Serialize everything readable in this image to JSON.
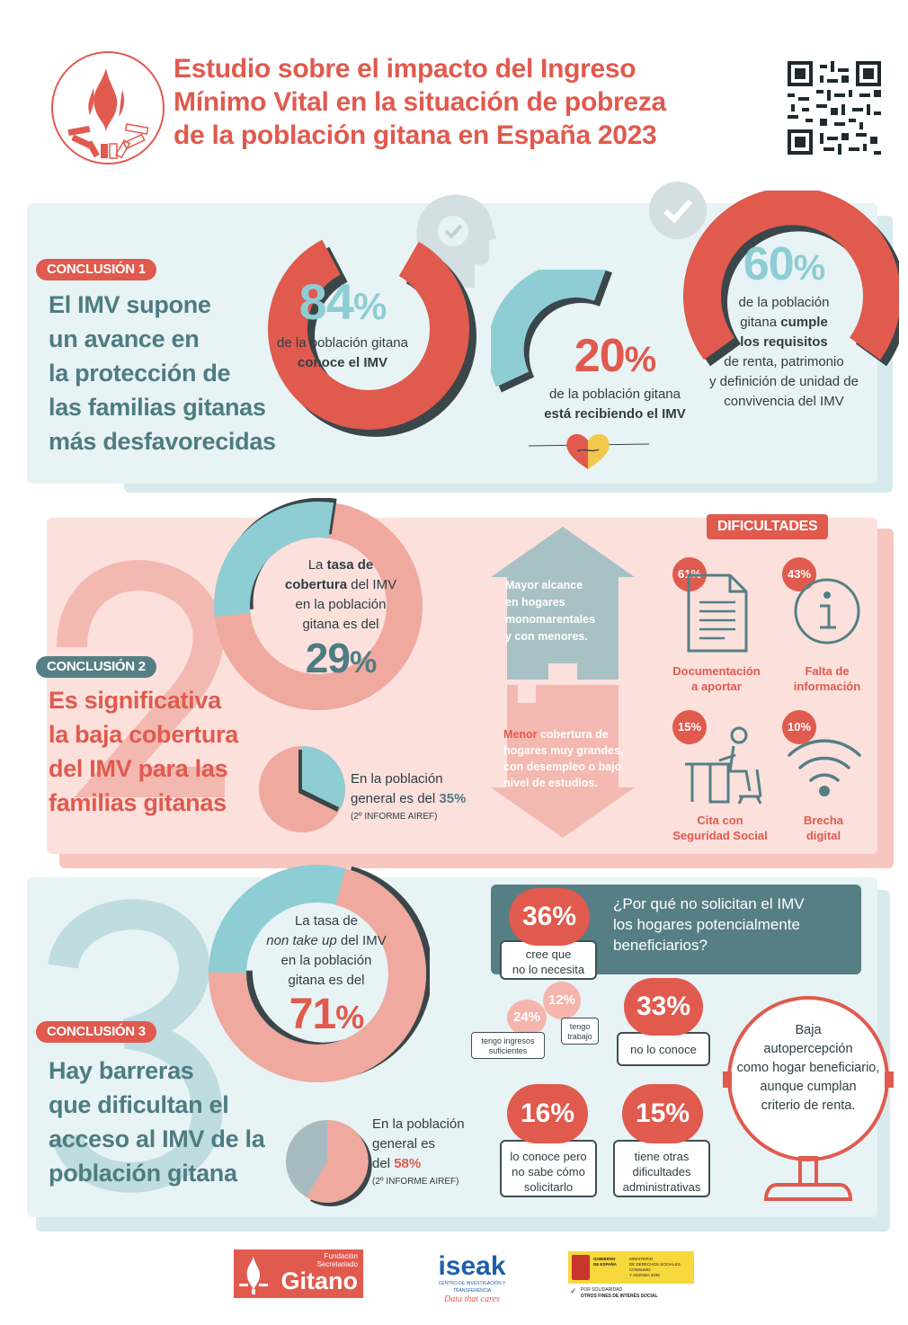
{
  "header": {
    "title_lines": [
      "Estudio sobre el impacto del Ingreso",
      "Mínimo Vital en la situación de pobreza",
      "de  la  población gitana en España 2023"
    ]
  },
  "colors": {
    "red": "#e05a4e",
    "teal": "#8ecdd3",
    "dark_teal": "#557f85",
    "pink": "#fbe0dc",
    "light_blue": "#e6f2f4"
  },
  "section1": {
    "badge": "CONCLUSIÓN 1",
    "title_lines": [
      "El IMV supone",
      "un avance en",
      "la protección de",
      "las familias gitanas",
      "más desfavorecidas"
    ],
    "stat1": {
      "value": "84",
      "unit": "%",
      "line1": "de la población gitana",
      "line2": "conoce el IMV"
    },
    "stat2": {
      "value": "20",
      "unit": "%",
      "line1": "de la población gitana",
      "line2": "está recibiendo el IMV"
    },
    "stat3": {
      "value": "60",
      "unit": "%",
      "line1": "de la población",
      "line2a": "gitana ",
      "line2b": "cumple",
      "line3": "los requisitos",
      "line4": "de renta, patrimonio",
      "line5": "y definición de unidad de",
      "line6": "convivencia del IMV"
    }
  },
  "section2": {
    "badge": "CONCLUSIÓN 2",
    "title_lines": [
      "Es significativa",
      "la baja cobertura",
      "del IMV para las",
      "familias gitanas"
    ],
    "coverage": {
      "l1a": "La ",
      "l1b": "tasa de",
      "l2a": "cobertura",
      "l2b": " del IMV",
      "l3": "en la población",
      "l4": "gitana es del",
      "value": "29",
      "unit": "%"
    },
    "general": {
      "l1": "En la población",
      "l2a": "general es del ",
      "value": "35%",
      "note": "(2º INFORME AIREF)"
    },
    "house_up": {
      "l1": "Mayor alcance",
      "l2": "en hogares",
      "l3": "monomarentales",
      "l4": "y con menores."
    },
    "house_down": {
      "l1a": "Menor",
      "l1b": " cobertura de",
      "l2": "hogares muy grandes,",
      "l3": "con desempleo o bajo",
      "l4": "nivel de estudios."
    },
    "difficulties": {
      "title": "DIFICULTADES",
      "items": [
        {
          "pct": "61%",
          "icon": "document-icon",
          "label_lines": [
            "Documentación",
            "a aportar"
          ]
        },
        {
          "pct": "43%",
          "icon": "info-icon",
          "label_lines": [
            "Falta de",
            "información"
          ]
        },
        {
          "pct": "15%",
          "icon": "desk-person-icon",
          "label_lines": [
            "Cita con",
            "Seguridad Social"
          ]
        },
        {
          "pct": "10%",
          "icon": "wifi-icon",
          "label_lines": [
            "Brecha",
            "digital"
          ]
        }
      ]
    }
  },
  "section3": {
    "badge": "CONCLUSIÓN 3",
    "title_lines": [
      "Hay barreras",
      "que dificultan el",
      "acceso al IMV de la",
      "población gitana"
    ],
    "nontakeup": {
      "l1": "La tasa de",
      "l2a": "non take up",
      "l2b": " del IMV",
      "l3": "en la población",
      "l4": "gitana es del",
      "value": "71",
      "unit": "%"
    },
    "general": {
      "l1": "En la población",
      "l2": "general es",
      "l3a": "del ",
      "value": "58%",
      "note": "(2º INFORME AIREF)"
    },
    "question_lines": [
      "¿Por qué no solicitan el IMV",
      "los hogares potencialmente",
      "beneficiarios?"
    ],
    "reasons": [
      {
        "pct": "36%",
        "lines": [
          "cree que",
          "no lo necesita"
        ]
      },
      {
        "pct": "33%",
        "lines": [
          "no lo conoce"
        ]
      },
      {
        "pct": "16%",
        "lines": [
          "lo conoce pero",
          "no sabe cómo",
          "solicitarlo"
        ]
      },
      {
        "pct": "15%",
        "lines": [
          "tiene otras",
          "dificultades",
          "administrativas"
        ]
      }
    ],
    "sub_reasons": [
      {
        "pct": "24%",
        "lines": [
          "tengo ingresos",
          "suficientes"
        ]
      },
      {
        "pct": "12%",
        "lines": [
          "tengo",
          "trabajo"
        ]
      }
    ],
    "mirror_lines": [
      "Baja",
      "autopercepción",
      "como hogar beneficiario,",
      "aunque cumplan",
      "criterio de renta."
    ]
  },
  "footer": {
    "fsg_small": [
      "Fundación",
      "Secretariado"
    ],
    "fsg_big": "Gitano",
    "iseak": "iseak",
    "iseak_sub": "CENTRO DE INVESTIGACIÓN Y TRANSFERENCIA",
    "iseak_tag": "Data that cares",
    "gov_left": [
      "GOBIERNO",
      "DE ESPAÑA"
    ],
    "gov_right": [
      "MINISTERIO",
      "DE DERECHOS SOCIALES, CONSUMO",
      "Y AGENDA 2030"
    ],
    "solidarity": [
      "POR SOLIDARIDAD",
      "OTROS FINES DE INTERÉS SOCIAL"
    ]
  }
}
